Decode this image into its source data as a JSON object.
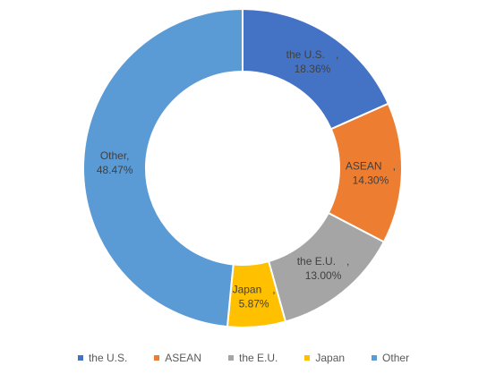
{
  "chart_data": {
    "type": "pie",
    "variant": "donut",
    "categories": [
      "the U.S.",
      "ASEAN",
      "the E.U.",
      "Japan",
      "Other"
    ],
    "values": [
      18.36,
      14.3,
      13.0,
      5.87,
      48.47
    ],
    "unit": "%",
    "value_labels": [
      "18.36%",
      "14.30%",
      "13.00%",
      "5.87%",
      "48.47%"
    ],
    "slice_labels": [
      "the U.S.　,",
      "ASEAN　,",
      "the E.U.　,",
      "Japan　,",
      "Other,"
    ],
    "colors": [
      "#4472C4",
      "#ED7D31",
      "#A5A5A5",
      "#FFC000",
      "#5B9BD5"
    ],
    "start_angle_deg": 0,
    "direction": "clockwise",
    "legend_position": "bottom",
    "title": ""
  },
  "legend": {
    "items": [
      {
        "label": "the U.S.",
        "color": "#4472C4"
      },
      {
        "label": "ASEAN",
        "color": "#ED7D31"
      },
      {
        "label": "the E.U.",
        "color": "#A5A5A5"
      },
      {
        "label": "Japan",
        "color": "#FFC000"
      },
      {
        "label": "Other",
        "color": "#5B9BD5"
      }
    ]
  }
}
